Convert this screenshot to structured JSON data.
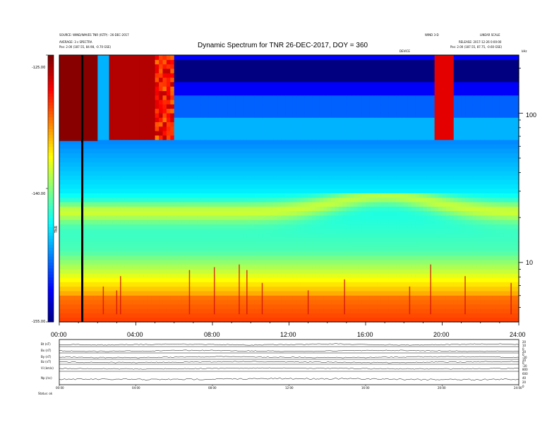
{
  "header": {
    "title": "Dynamic Spectrum for TNR 26-DEC-2017, DOY = 360",
    "top_left_line1": "SOURCE: WIND/WAVES TNR (ISTP) - 26-DEC-2017",
    "top_left_line2": "AVERAGE: 3 s SPECTRA",
    "top_left_line3": "Pos: 2.00 (187.55, 84.98, -0.70 GSE)",
    "top_right_line1": "WIND 3-D",
    "top_right_line2": "LINEAR SCALE",
    "top_right_line3": "RELEASE: 2017-12-26 0:00:00",
    "top_right_line4": "Pos: 2.00 (187.55, 87.75, -0.60 GSE)",
    "center_small": "DEVICE",
    "khz_label": "kHz"
  },
  "colorbar": {
    "label": "TNR",
    "ticks": [
      "-125.00",
      "-140.00",
      "-155.00"
    ]
  },
  "main_axes": {
    "x_ticks": [
      "00:00",
      "04:00",
      "08:00",
      "12:00",
      "16:00",
      "20:00",
      "24:00"
    ],
    "y_ticks": [
      "100",
      "10"
    ]
  },
  "bottom_panel": {
    "row_labels": [
      "Bt (nT)",
      "Bx (nT)",
      "By (nT)",
      "Bz (nT)",
      "Vi (km/s)",
      "Np (/cc)"
    ],
    "right_labels": [
      "20",
      "10",
      "0",
      "20",
      "0",
      "-20",
      "20",
      "0",
      "-20",
      "800",
      "600",
      "40",
      "20",
      "0"
    ],
    "x_ticks": [
      "00:00",
      "04:00",
      "08:00",
      "12:00",
      "16:00",
      "20:00",
      "24:00"
    ],
    "footer": "Status: ok"
  },
  "chart_data": [
    {
      "type": "heatmap",
      "title": "Dynamic Spectrum for TNR 26-DEC-2017, DOY = 360",
      "xlabel": "",
      "ylabel": "",
      "x_range_hours": [
        0,
        24
      ],
      "y_scale": "log",
      "y_range_khz": [
        4,
        245
      ],
      "colorbar_label": "TNR",
      "colorbar_range": [
        -155,
        -125
      ],
      "marker_line_hour": 1.2,
      "features": [
        {
          "hour_start": 0.0,
          "hour_end": 6.0,
          "khz_low": 65,
          "khz_high": 245,
          "level": -125
        },
        {
          "hour_start": 6.0,
          "hour_end": 19.0,
          "khz_low": 95,
          "khz_high": 245,
          "level": -155
        },
        {
          "hour_start": 20.0,
          "hour_end": 20.5,
          "khz_low": 65,
          "khz_high": 200,
          "level": -125
        },
        {
          "hour_start": 0.0,
          "hour_end": 24.0,
          "khz_low": 4,
          "khz_high": 8,
          "level": -133
        },
        {
          "hour_start": 0.0,
          "hour_end": 24.0,
          "khz_low": 30,
          "khz_high": 65,
          "level": -145
        }
      ]
    },
    {
      "type": "line",
      "xlabel": "",
      "x_range_hours": [
        0,
        24
      ],
      "series": [
        {
          "name": "Bt (nT)"
        },
        {
          "name": "Bx (nT)"
        },
        {
          "name": "By (nT)"
        },
        {
          "name": "Bz (nT)"
        },
        {
          "name": "Vi (km/s)"
        },
        {
          "name": "Np (/cc)"
        }
      ]
    }
  ]
}
